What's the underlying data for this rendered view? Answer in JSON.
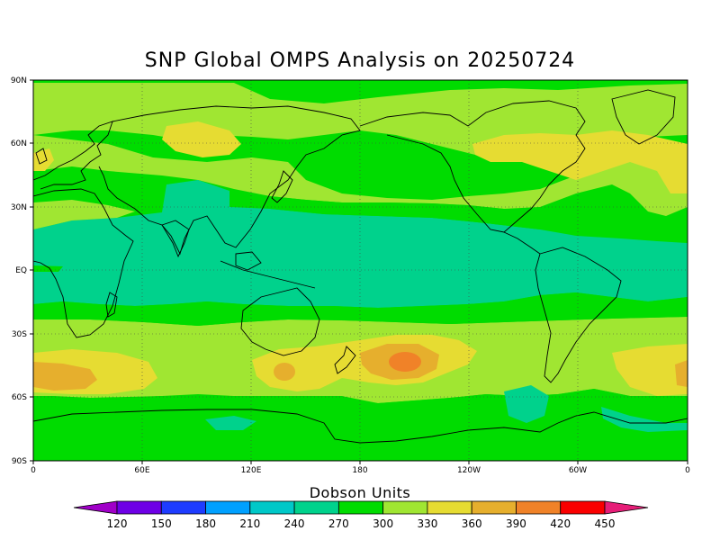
{
  "title": "SNP Global OMPS Analysis on 20250724",
  "map": {
    "lat_labels": [
      "90N",
      "60N",
      "30N",
      "EQ",
      "30S",
      "60S",
      "90S"
    ],
    "lon_labels": [
      "0",
      "60E",
      "120E",
      "180",
      "120W",
      "60W",
      "0"
    ],
    "projection": "equirectangular",
    "gridlines": "dotted"
  },
  "colorbar": {
    "title": "Dobson Units",
    "labels": [
      "120",
      "150",
      "180",
      "210",
      "240",
      "270",
      "300",
      "330",
      "360",
      "390",
      "420",
      "450"
    ],
    "colors": [
      "#a000c8",
      "#6e00e6",
      "#1e3cff",
      "#00a0ff",
      "#00c8c8",
      "#00d28c",
      "#00dc00",
      "#a0e632",
      "#e6dc32",
      "#e6af2d",
      "#f08228",
      "#fa0000",
      "#e61e78"
    ]
  },
  "palette": {
    "dark_green": "#00dc00",
    "teal": "#00d28c",
    "lime": "#a0e632",
    "yellow": "#e6dc32",
    "gold": "#e6af2d",
    "orange": "#f08228"
  }
}
